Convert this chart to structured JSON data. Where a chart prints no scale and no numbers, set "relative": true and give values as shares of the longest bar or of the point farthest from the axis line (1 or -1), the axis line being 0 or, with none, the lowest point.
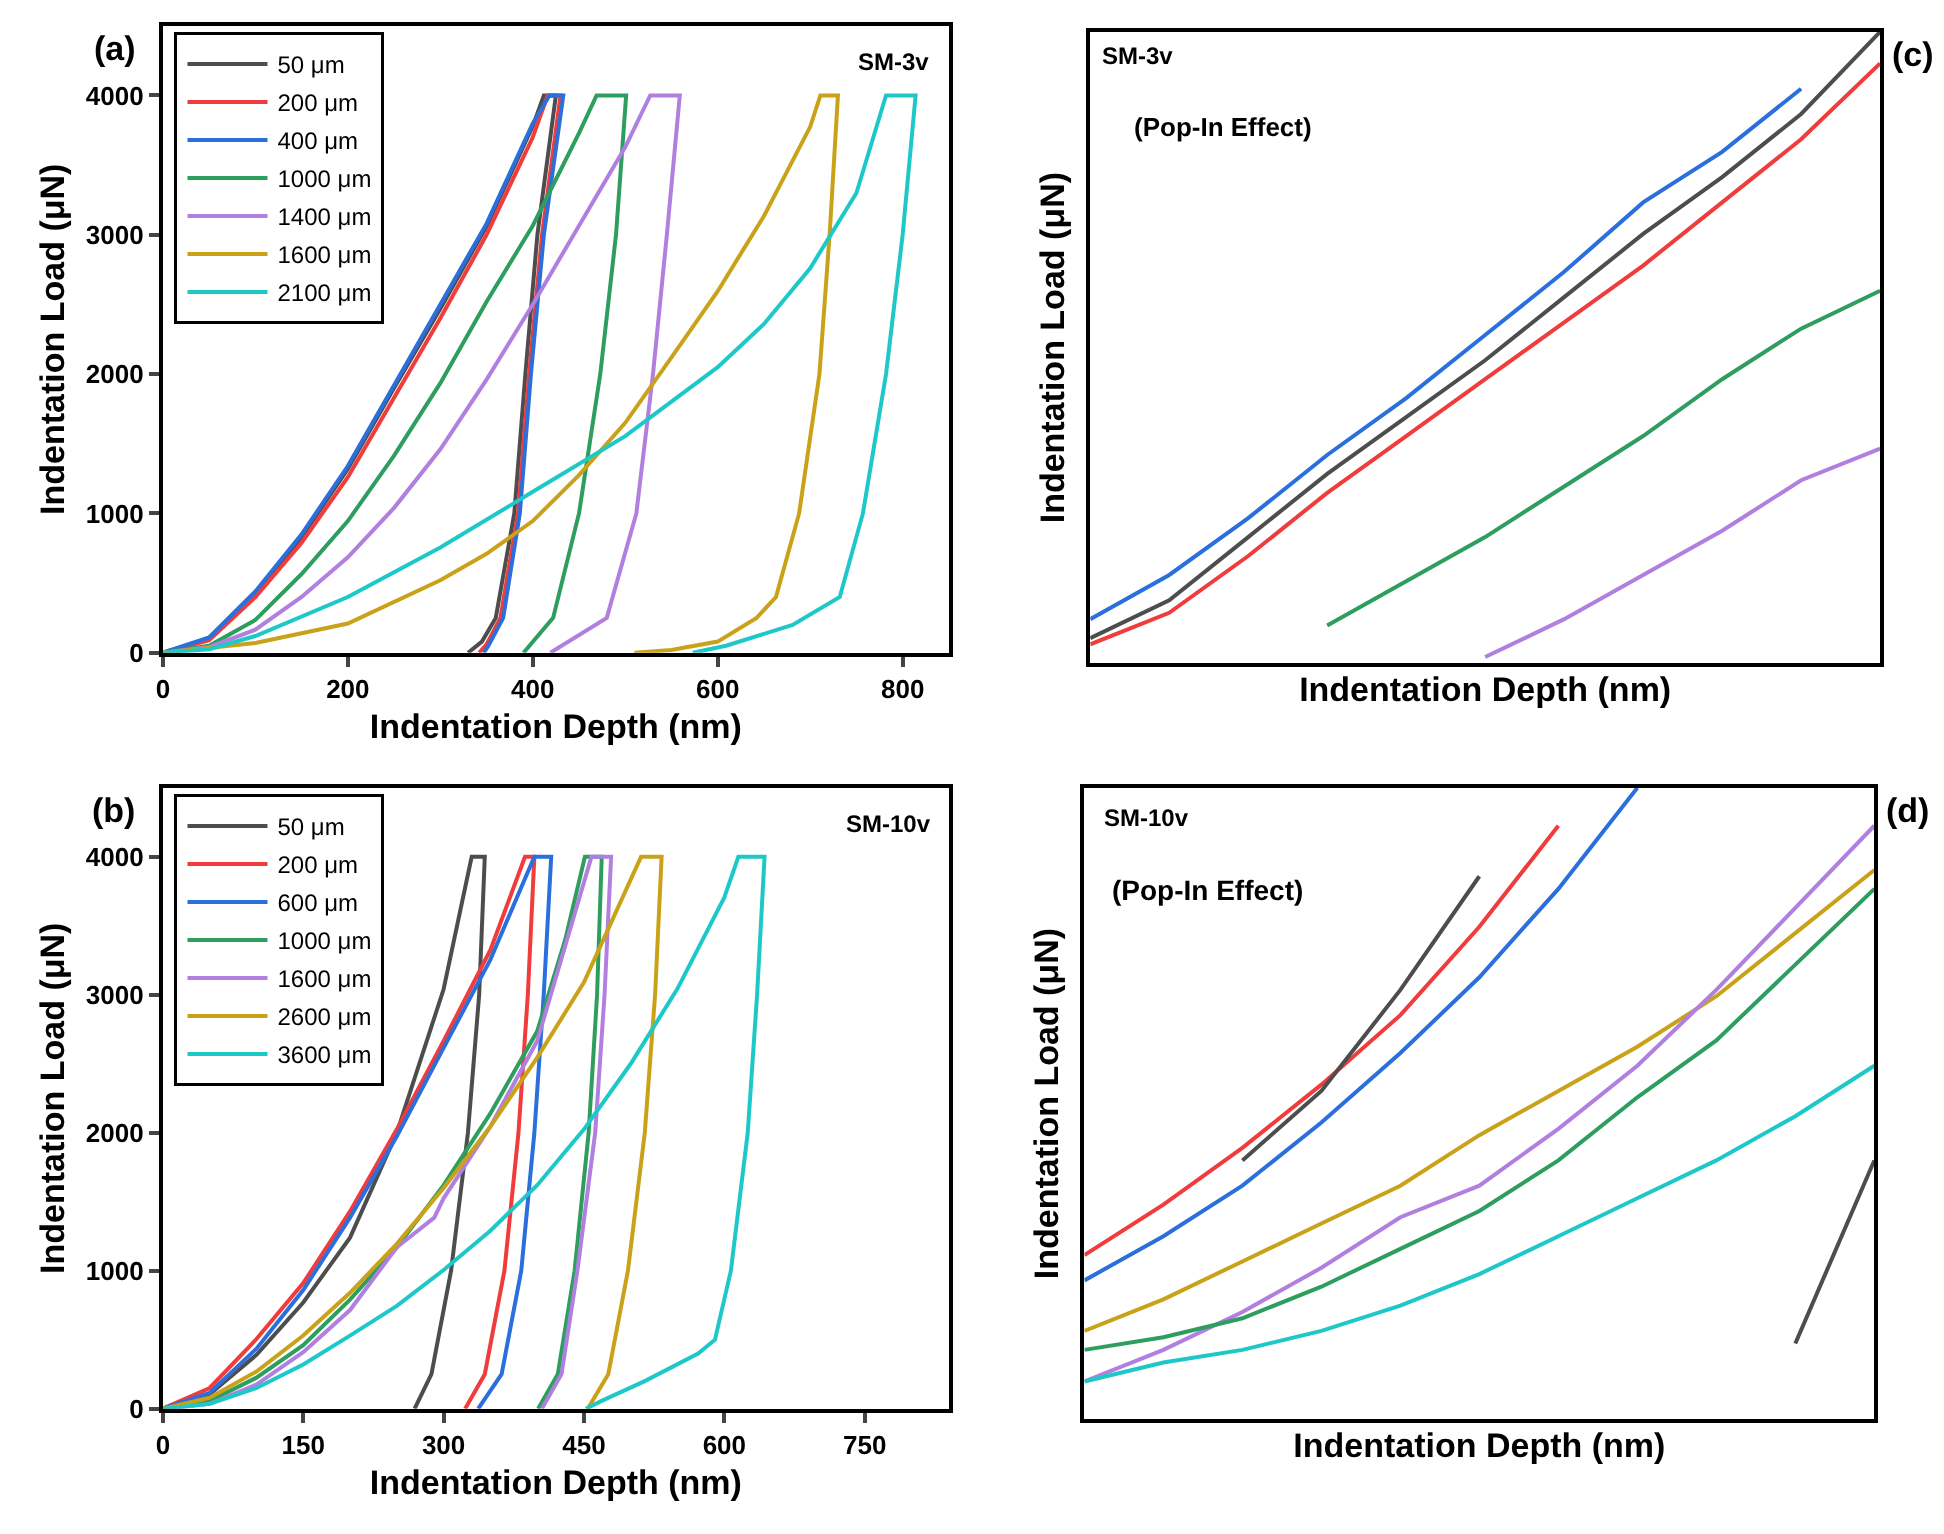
{
  "chart_data": [
    {
      "type": "line",
      "xlabel": "Indentation Depth (nm)",
      "ylabel": "Indentation Load (μN)",
      "annotations": [
        "(a)",
        "SM-3v"
      ],
      "xlim": [
        0,
        850
      ],
      "ylim": [
        0,
        4500
      ],
      "xticks": [
        0,
        200,
        400,
        600,
        800
      ],
      "yticks": [
        0,
        1000,
        2000,
        3000,
        4000
      ],
      "legend": "top left",
      "marker": "none",
      "line_style": "solid",
      "series": [
        {
          "name": "50 μm",
          "color": "#4d4d4d",
          "x": [
            0,
            50,
            100,
            150,
            200,
            250,
            300,
            350,
            400,
            412,
            425,
            405,
            392,
            380,
            360,
            345,
            330
          ],
          "values": [
            0,
            100,
            420,
            830,
            1320,
            1900,
            2470,
            3060,
            3780,
            4000,
            4000,
            3000,
            2000,
            1000,
            250,
            80,
            0
          ]
        },
        {
          "name": "200 μm",
          "color": "#f03c3c",
          "x": [
            0,
            50,
            100,
            150,
            200,
            250,
            300,
            350,
            400,
            416,
            430,
            410,
            396,
            384,
            365,
            350,
            342
          ],
          "values": [
            0,
            90,
            400,
            790,
            1260,
            1830,
            2400,
            3000,
            3700,
            4000,
            4000,
            3000,
            2000,
            1000,
            250,
            60,
            0
          ]
        },
        {
          "name": "400 μm",
          "color": "#2a6fdc",
          "x": [
            0,
            50,
            100,
            150,
            200,
            250,
            300,
            350,
            400,
            418,
            433,
            412,
            398,
            386,
            368,
            352,
            347
          ],
          "values": [
            0,
            110,
            440,
            850,
            1340,
            1920,
            2500,
            3080,
            3800,
            4000,
            4000,
            3000,
            2000,
            1000,
            250,
            50,
            0
          ]
        },
        {
          "name": "1000 μm",
          "color": "#2e9e5e",
          "x": [
            0,
            50,
            100,
            150,
            200,
            250,
            300,
            350,
            400,
            450,
            469,
            501,
            490,
            473,
            450,
            422,
            390
          ],
          "values": [
            0,
            50,
            235,
            565,
            945,
            1415,
            1935,
            2520,
            3065,
            3730,
            4000,
            4000,
            3000,
            2000,
            1000,
            250,
            0
          ]
        },
        {
          "name": "1400 μm",
          "color": "#b07fe0",
          "x": [
            0,
            50,
            100,
            150,
            200,
            250,
            300,
            350,
            400,
            450,
            500,
            527,
            559,
            545,
            530,
            512,
            480,
            419
          ],
          "values": [
            0,
            40,
            165,
            400,
            685,
            1040,
            1460,
            1960,
            2500,
            3065,
            3630,
            4000,
            4000,
            3000,
            2000,
            1000,
            250,
            0
          ]
        },
        {
          "name": "1600 μm",
          "color": "#c9a21a",
          "x": [
            0,
            100,
            200,
            300,
            350,
            400,
            450,
            500,
            550,
            600,
            650,
            700,
            711,
            730,
            721,
            710,
            688,
            663,
            642,
            600,
            550,
            510
          ],
          "values": [
            0,
            70,
            210,
            520,
            710,
            945,
            1275,
            1650,
            2120,
            2595,
            3135,
            3775,
            4000,
            4000,
            3000,
            2000,
            1000,
            400,
            250,
            80,
            20,
            0
          ]
        },
        {
          "name": "2100 μm",
          "color": "#1fc8c8",
          "x": [
            0,
            50,
            100,
            200,
            300,
            400,
            500,
            600,
            650,
            700,
            750,
            782,
            814,
            800,
            782,
            757,
            732,
            681,
            609,
            573
          ],
          "values": [
            0,
            25,
            120,
            400,
            755,
            1155,
            1555,
            2050,
            2360,
            2760,
            3300,
            4000,
            4000,
            3000,
            2000,
            1000,
            400,
            200,
            50,
            0
          ]
        }
      ]
    },
    {
      "type": "line",
      "xlabel": "Indentation Depth (nm)",
      "ylabel": "Indentation Load (μN)",
      "annotations": [
        "(b)",
        "SM-10v"
      ],
      "xlim": [
        0,
        840
      ],
      "ylim": [
        0,
        4500
      ],
      "xticks": [
        0,
        150,
        300,
        450,
        600,
        750
      ],
      "yticks": [
        0,
        1000,
        2000,
        3000,
        4000
      ],
      "legend": "top left",
      "marker": "none",
      "line_style": "solid",
      "series": [
        {
          "name": "50 μm",
          "color": "#4d4d4d",
          "x": [
            0,
            50,
            100,
            150,
            200,
            250,
            300,
            330,
            344,
            338,
            326,
            308,
            287,
            269
          ],
          "values": [
            0,
            105,
            390,
            770,
            1240,
            2000,
            3040,
            4000,
            4000,
            3000,
            2000,
            1000,
            250,
            0
          ]
        },
        {
          "name": "200 μm",
          "color": "#f03c3c",
          "x": [
            0,
            50,
            100,
            150,
            200,
            250,
            300,
            350,
            387,
            397,
            390,
            380,
            365,
            344,
            323
          ],
          "values": [
            0,
            150,
            505,
            910,
            1430,
            2025,
            2665,
            3325,
            4000,
            4000,
            3000,
            2000,
            1000,
            250,
            0
          ]
        },
        {
          "name": "600 μm",
          "color": "#2a6fdc",
          "x": [
            0,
            50,
            100,
            150,
            200,
            250,
            300,
            350,
            397,
            415,
            407,
            397,
            383,
            362,
            337
          ],
          "values": [
            0,
            115,
            435,
            860,
            1385,
            1975,
            2615,
            3255,
            4000,
            4000,
            3000,
            2000,
            1000,
            250,
            0
          ]
        },
        {
          "name": "1000 μm",
          "color": "#2e9e5e",
          "x": [
            0,
            50,
            100,
            150,
            200,
            250,
            300,
            350,
            400,
            430,
            451,
            469,
            464,
            455,
            440,
            422,
            401
          ],
          "values": [
            0,
            55,
            225,
            460,
            790,
            1170,
            1620,
            2140,
            2735,
            3400,
            4000,
            4000,
            3000,
            2000,
            1000,
            250,
            0
          ]
        },
        {
          "name": "1600 μm",
          "color": "#b07fe0",
          "x": [
            0,
            50,
            100,
            150,
            200,
            250,
            290,
            300,
            350,
            400,
            458,
            479,
            472,
            462,
            443,
            426,
            405
          ],
          "values": [
            0,
            35,
            175,
            410,
            715,
            1170,
            1385,
            1525,
            2045,
            2665,
            4000,
            4000,
            3000,
            2000,
            1000,
            250,
            0
          ]
        },
        {
          "name": "2600 μm",
          "color": "#c9a21a",
          "x": [
            0,
            50,
            100,
            150,
            200,
            250,
            300,
            350,
            400,
            450,
            511,
            533,
            526,
            515,
            497,
            476,
            454
          ],
          "values": [
            0,
            80,
            270,
            530,
            840,
            1195,
            1600,
            2045,
            2545,
            3090,
            4000,
            4000,
            3000,
            2000,
            1000,
            250,
            0
          ]
        },
        {
          "name": "3600 μm",
          "color": "#1fc8c8",
          "x": [
            0,
            50,
            100,
            150,
            200,
            250,
            300,
            350,
            400,
            450,
            500,
            550,
            600,
            615,
            643,
            635,
            625,
            607,
            590,
            572,
            515,
            470,
            452
          ],
          "values": [
            0,
            35,
            150,
            320,
            530,
            745,
            1005,
            1290,
            1620,
            2025,
            2500,
            3045,
            3705,
            4000,
            4000,
            3000,
            2000,
            1000,
            500,
            400,
            200,
            60,
            0
          ]
        }
      ]
    },
    {
      "type": "line",
      "relative": true,
      "xlabel": "Indentation Depth (nm)",
      "ylabel": "Indentation Load (μN)",
      "annotations": [
        "(c)",
        "SM-3v",
        "(Pop-In Effect)"
      ],
      "categories": [
        null,
        null,
        null,
        null,
        null,
        null,
        null,
        null,
        null,
        null,
        null
      ],
      "tick_labels": false,
      "legend": false,
      "marker": "none",
      "line_style": "solid",
      "series": [
        {
          "color": "#2a6fdc",
          "values": [
            0.07,
            0.14,
            0.23,
            0.33,
            0.42,
            0.52,
            0.62,
            0.73,
            0.81,
            0.91,
            null
          ]
        },
        {
          "color": "#4d4d4d",
          "values": [
            0.04,
            0.1,
            0.2,
            0.3,
            0.39,
            0.48,
            0.58,
            0.68,
            0.77,
            0.87,
            1.0
          ]
        },
        {
          "color": "#f03c3c",
          "values": [
            0.03,
            0.08,
            0.17,
            0.27,
            0.36,
            0.45,
            0.54,
            0.63,
            0.73,
            0.83,
            0.95
          ]
        },
        {
          "color": "#2e9e5e",
          "values": [
            null,
            null,
            null,
            0.06,
            0.13,
            0.2,
            0.28,
            0.36,
            0.45,
            0.53,
            0.59
          ]
        },
        {
          "color": "#b07fe0",
          "values": [
            null,
            null,
            null,
            null,
            null,
            0.01,
            0.07,
            0.14,
            0.21,
            0.29,
            0.34
          ]
        }
      ]
    },
    {
      "type": "line",
      "relative": true,
      "xlabel": "Indentation Depth (nm)",
      "ylabel": "Indentation Load (μN)",
      "annotations": [
        "(d)",
        "SM-10v",
        "(Pop-In Effect)"
      ],
      "categories": [
        null,
        null,
        null,
        null,
        null,
        null,
        null,
        null,
        null,
        null,
        null
      ],
      "tick_labels": false,
      "legend": false,
      "marker": "none",
      "line_style": "solid",
      "series": [
        {
          "color": "#f03c3c",
          "values": [
            0.26,
            0.34,
            0.43,
            0.53,
            0.64,
            0.78,
            0.94,
            null,
            null,
            null,
            null
          ]
        },
        {
          "color": "#2a6fdc",
          "values": [
            0.22,
            0.29,
            0.37,
            0.47,
            0.58,
            0.7,
            0.84,
            1.0,
            null,
            null,
            null
          ]
        },
        {
          "color": "#4d4d4d",
          "values": [
            null,
            null,
            0.41,
            0.52,
            0.68,
            0.86,
            null,
            null,
            null,
            0.12,
            0.41
          ]
        },
        {
          "color": "#c9a21a",
          "values": [
            0.14,
            0.19,
            0.25,
            0.31,
            0.37,
            0.45,
            0.52,
            0.59,
            0.67,
            0.77,
            0.87
          ]
        },
        {
          "color": "#b07fe0",
          "values": [
            0.06,
            0.11,
            0.17,
            0.24,
            0.32,
            0.37,
            0.46,
            0.56,
            0.68,
            0.81,
            0.94
          ]
        },
        {
          "color": "#2e9e5e",
          "values": [
            0.11,
            0.13,
            0.16,
            0.21,
            0.27,
            0.33,
            0.41,
            0.51,
            0.6,
            0.72,
            0.84
          ]
        },
        {
          "color": "#1fc8c8",
          "values": [
            0.06,
            0.09,
            0.11,
            0.14,
            0.18,
            0.23,
            0.29,
            0.35,
            0.41,
            0.48,
            0.56
          ]
        }
      ]
    }
  ]
}
